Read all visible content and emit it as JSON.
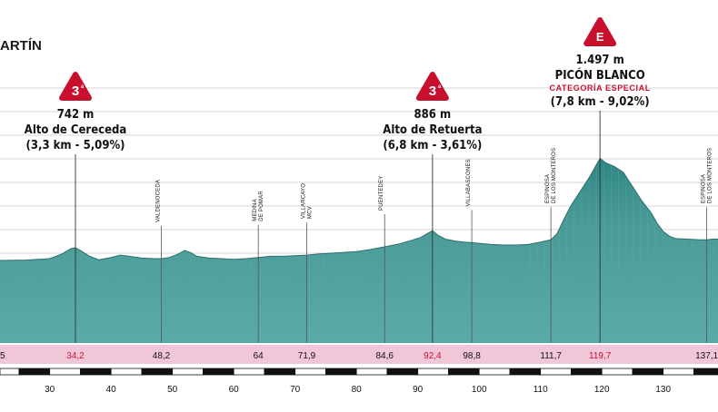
{
  "start_label": "ARTÍN",
  "chart_data": {
    "type": "area",
    "title": "",
    "xlim": [
      21.9,
      140.5
    ],
    "ylim": [
      0,
      1700
    ],
    "x_ticks": [
      30,
      40,
      50,
      60,
      70,
      80,
      90,
      100,
      110,
      120,
      130
    ],
    "profile": [
      [
        21.9,
        635
      ],
      [
        26,
        638
      ],
      [
        30,
        650
      ],
      [
        32,
        690
      ],
      [
        33.5,
        735
      ],
      [
        34.2,
        742
      ],
      [
        35,
        720
      ],
      [
        36.5,
        670
      ],
      [
        38,
        640
      ],
      [
        40,
        660
      ],
      [
        41.5,
        680
      ],
      [
        43,
        670
      ],
      [
        45,
        655
      ],
      [
        47,
        650
      ],
      [
        48.2,
        650
      ],
      [
        49.5,
        660
      ],
      [
        51,
        690
      ],
      [
        52,
        720
      ],
      [
        53,
        700
      ],
      [
        54,
        670
      ],
      [
        56,
        655
      ],
      [
        58,
        650
      ],
      [
        60,
        645
      ],
      [
        62,
        650
      ],
      [
        64,
        660
      ],
      [
        66,
        670
      ],
      [
        68,
        670
      ],
      [
        70,
        675
      ],
      [
        71.9,
        680
      ],
      [
        74,
        690
      ],
      [
        77,
        700
      ],
      [
        80,
        710
      ],
      [
        82,
        725
      ],
      [
        84.6,
        750
      ],
      [
        87,
        775
      ],
      [
        89,
        805
      ],
      [
        90.5,
        830
      ],
      [
        91.5,
        860
      ],
      [
        92.4,
        886
      ],
      [
        93.2,
        850
      ],
      [
        94.5,
        815
      ],
      [
        96,
        800
      ],
      [
        97.5,
        790
      ],
      [
        98.8,
        785
      ],
      [
        100,
        780
      ],
      [
        102,
        770
      ],
      [
        104,
        765
      ],
      [
        106,
        765
      ],
      [
        108,
        770
      ],
      [
        110,
        790
      ],
      [
        111.7,
        810
      ],
      [
        112.7,
        860
      ],
      [
        113.8,
        980
      ],
      [
        115,
        1100
      ],
      [
        116.5,
        1220
      ],
      [
        118,
        1340
      ],
      [
        119.7,
        1497
      ],
      [
        120.6,
        1460
      ],
      [
        122,
        1430
      ],
      [
        123.5,
        1380
      ],
      [
        125,
        1260
      ],
      [
        126.5,
        1140
      ],
      [
        128,
        1040
      ],
      [
        129,
        950
      ],
      [
        130,
        880
      ],
      [
        131,
        840
      ],
      [
        132,
        820
      ],
      [
        134,
        815
      ],
      [
        136,
        810
      ],
      [
        137.1,
        810
      ],
      [
        138,
        815
      ],
      [
        140.5,
        815
      ]
    ],
    "waypoints": [
      {
        "name": "VALDENOCEDA",
        "km": 48.2
      },
      {
        "name": "MEDINA DE POMAR",
        "km": 64
      },
      {
        "name": "VILLARCAYO MCV",
        "km": 71.9
      },
      {
        "name": "PUENTEDEY",
        "km": 84.6
      },
      {
        "name": "VILLABASCONES",
        "km": 98.8
      },
      {
        "name": "ESPINOSA DE LOS MONTEROS",
        "km": 111.7
      },
      {
        "name": "ESPINOSA DE LOS MONTEROS",
        "km": 137.1
      }
    ],
    "km_strip": [
      {
        "label": "5",
        "km": 21.9,
        "red": false
      },
      {
        "label": "34,2",
        "km": 34.2,
        "red": true
      },
      {
        "label": "48,2",
        "km": 48.2,
        "red": false
      },
      {
        "label": "64",
        "km": 64,
        "red": false
      },
      {
        "label": "71,9",
        "km": 71.9,
        "red": false
      },
      {
        "label": "84,6",
        "km": 84.6,
        "red": false
      },
      {
        "label": "92,4",
        "km": 92.4,
        "red": true
      },
      {
        "label": "98,8",
        "km": 98.8,
        "red": false
      },
      {
        "label": "111,7",
        "km": 111.7,
        "red": false
      },
      {
        "label": "119,7",
        "km": 119.7,
        "red": true
      },
      {
        "label": "137,1",
        "km": 137.1,
        "red": false
      }
    ],
    "climbs": [
      {
        "badge": "3",
        "badge_sup": "a",
        "altitude": "742 m",
        "name": "Alto de Cereceda",
        "stats": "(3,3 km - 5,09%)",
        "category": "",
        "km": 34.2
      },
      {
        "badge": "3",
        "badge_sup": "a",
        "altitude": "886 m",
        "name": "Alto de Retuerta",
        "stats": "(6,8 km - 3,61%)",
        "category": "",
        "km": 92.4
      },
      {
        "badge": "E",
        "badge_sup": "",
        "altitude": "1.497 m",
        "name": "PICÓN BLANCO",
        "stats": "(7,8 km - 9,02%)",
        "category": "CATEGORÍA ESPECIAL",
        "km": 119.7
      }
    ]
  },
  "colors": {
    "profile_fill": "#4a9b98",
    "profile_top": "#2f7d7a",
    "badge_red": "#c8102e",
    "km_strip": "#f1c6d8",
    "grid": "#cfcfcf"
  }
}
